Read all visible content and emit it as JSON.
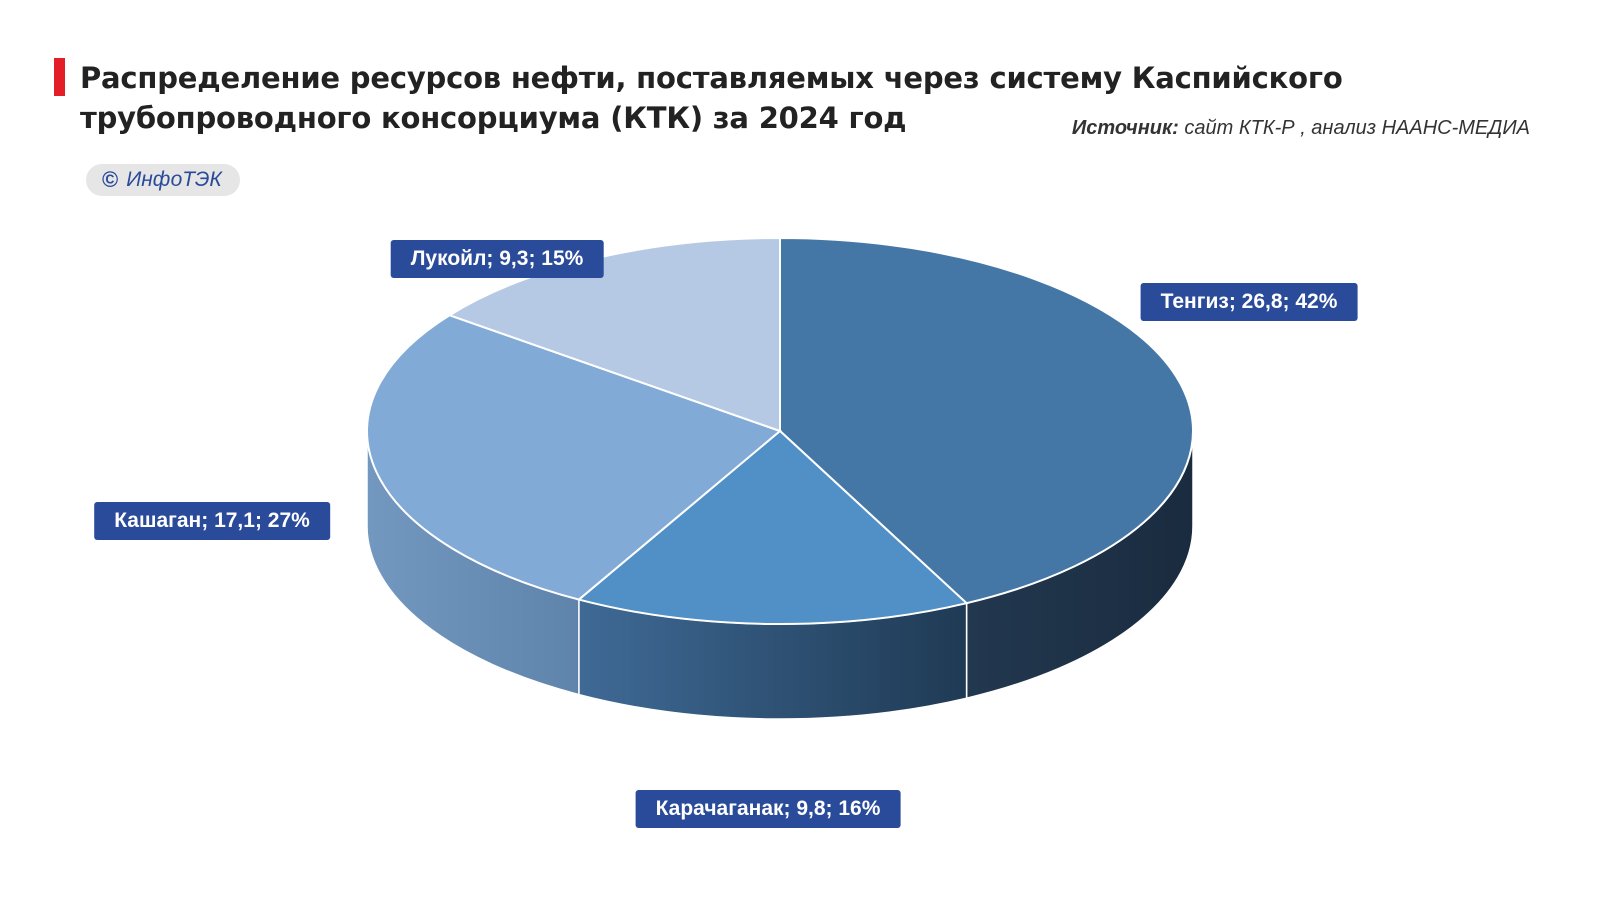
{
  "header": {
    "title": "Распределение ресурсов нефти, поставляемых через систему Каспийского трубопроводного консорциума (КТК) за 2024 год",
    "source_label": "Источник:",
    "source_text": " сайт КТК-Р , анализ НААНС-МЕДИА",
    "copyright_symbol": "©",
    "copyright_text": "ИнфоТЭК"
  },
  "colors": {
    "accent_bar": "#e31e26",
    "label_bg": "#2a4a9a"
  },
  "chart_data": {
    "type": "pie",
    "title": "Распределение ресурсов нефти, поставляемых через систему Каспийского трубопроводного консорциума (КТК) за 2024 год",
    "style": "3d",
    "slices": [
      {
        "name": "Тенгиз",
        "value": 26.8,
        "percent": 42,
        "label": "Тенгиз; 26,8; 42%",
        "color": "#4477a5",
        "side_color": "#1d3046"
      },
      {
        "name": "Карачаганак",
        "value": 9.8,
        "percent": 16,
        "label": "Карачаганак; 9,8; 16%",
        "color": "#5190c6",
        "side_color": "#2f5478"
      },
      {
        "name": "Кашаган",
        "value": 17.1,
        "percent": 27,
        "label": "Кашаган; 17,1; 27%",
        "color": "#82aad7",
        "side_color": "#6b8fb5"
      },
      {
        "name": "Лукойл",
        "value": 9.3,
        "percent": 15,
        "label": "Лукойл; 9,3; 15%",
        "color": "#b5c9e4",
        "side_color": "#9ab0cc"
      }
    ],
    "legend": "none"
  }
}
